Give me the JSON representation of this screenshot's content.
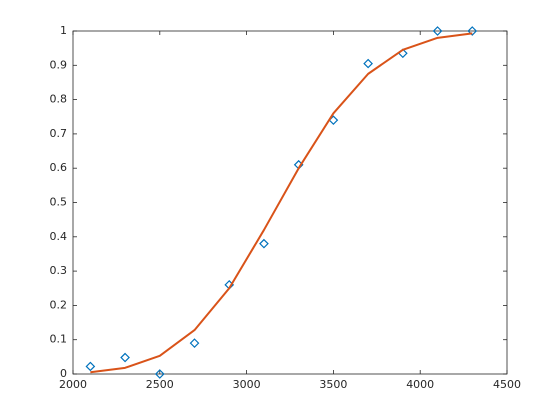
{
  "chart_data": {
    "type": "line",
    "x": [
      2100,
      2300,
      2500,
      2700,
      2900,
      3100,
      3300,
      3500,
      3700,
      3900,
      4100,
      4300
    ],
    "series": [
      {
        "type": "scatter",
        "marker": "diamond",
        "color": "#0072bd",
        "values": [
          0.022,
          0.048,
          0.0,
          0.09,
          0.26,
          0.38,
          0.61,
          0.74,
          0.905,
          0.935,
          1.0,
          1.0
        ]
      },
      {
        "type": "line",
        "color": "#d95319",
        "values": [
          0.005,
          0.018,
          0.053,
          0.128,
          0.25,
          0.42,
          0.6,
          0.76,
          0.875,
          0.945,
          0.98,
          0.993
        ]
      }
    ],
    "xlim": [
      2000,
      4500
    ],
    "xticks": [
      2000,
      2500,
      3000,
      3500,
      4000,
      4500
    ],
    "ylim": [
      0,
      1
    ],
    "yticks": [
      0,
      0.1,
      0.2,
      0.3,
      0.4,
      0.5,
      0.6,
      0.7,
      0.8,
      0.9,
      1
    ],
    "grid": false
  }
}
